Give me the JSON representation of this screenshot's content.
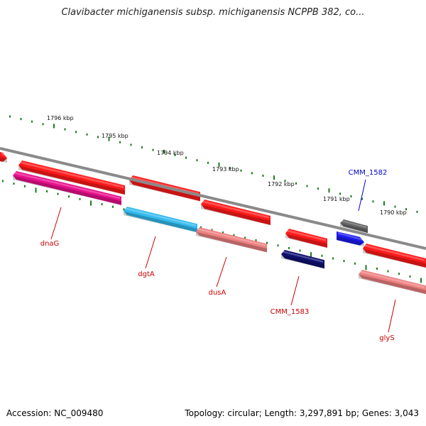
{
  "title": "Clavibacter michiganensis subsp. michiganensis NCPPB 382, co...",
  "footer": {
    "accession": "Accession: NC_009480",
    "summary": "Topology: circular; Length: 3,297,891 bp; Genes: 3,043"
  },
  "ruler": {
    "unit": "kbp",
    "labels": [
      "1796 kbp",
      "1795 kbp",
      "1794 kbp",
      "1793 kbp",
      "1792 kbp",
      "1791 kbp",
      "1790 kbp"
    ]
  },
  "colors": {
    "backbone": "#8a8a8a",
    "tick": "#1a7a1a",
    "cds_forward": "#ff1a1a",
    "label_default": "#cc0000",
    "label_highlight": "#0000cc"
  },
  "genes": [
    {
      "label": "dnaG",
      "color": "#e8108c",
      "label_color": "#cc0000"
    },
    {
      "label": "dgtA",
      "color": "#33bbee",
      "label_color": "#cc0000"
    },
    {
      "label": "dusA",
      "color": "#ee8080",
      "label_color": "#cc0000"
    },
    {
      "label": "CMM_1583",
      "color": "#101070",
      "label_color": "#cc0000"
    },
    {
      "label": "glyS",
      "color": "#ee8080",
      "label_color": "#cc0000"
    },
    {
      "label": "CMM_1582",
      "color": "#1a1aee",
      "label_color": "#0000cc"
    }
  ]
}
